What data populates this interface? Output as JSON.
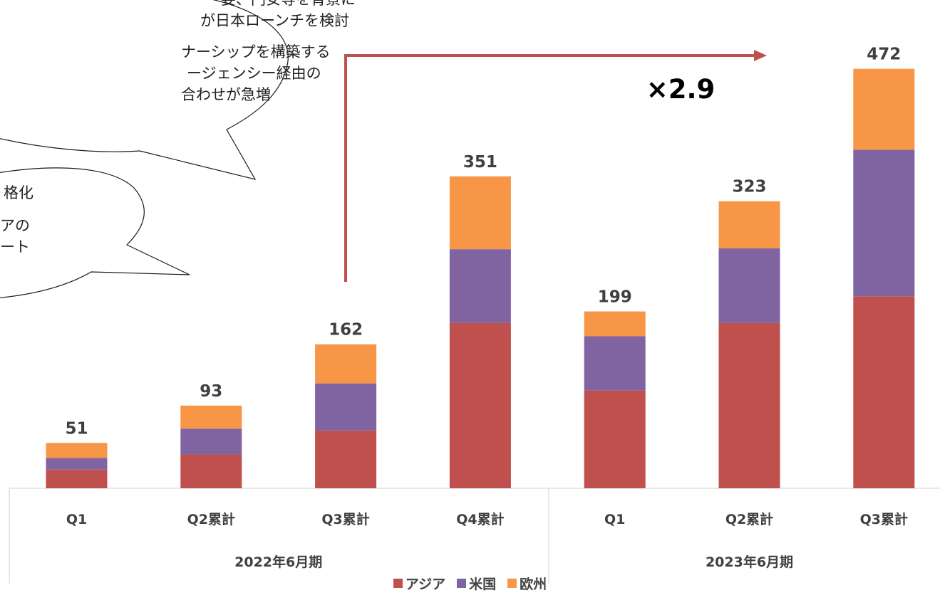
{
  "chart_data": {
    "type": "bar",
    "stacked": true,
    "categories": [
      "Q1",
      "Q2累計",
      "Q3累計",
      "Q4累計",
      "Q1",
      "Q2累計",
      "Q3累計"
    ],
    "groups": [
      {
        "label": "2022年6月期",
        "categories": [
          "Q1",
          "Q2累計",
          "Q3累計",
          "Q4累計"
        ]
      },
      {
        "label": "2023年6月期",
        "categories": [
          "Q1",
          "Q2累計",
          "Q3累計"
        ]
      }
    ],
    "series": [
      {
        "name": "アジア",
        "color": "#c0504d",
        "values": [
          21,
          38,
          65,
          186,
          110,
          186,
          216
        ]
      },
      {
        "name": "米国",
        "color": "#8064a2",
        "values": [
          13,
          29,
          53,
          83,
          61,
          84,
          165
        ]
      },
      {
        "name": "欧州",
        "color": "#f79646",
        "values": [
          17,
          26,
          44,
          82,
          28,
          53,
          91
        ]
      }
    ],
    "totals": [
      "51",
      "93",
      "162",
      "351",
      "199",
      "323",
      "472"
    ],
    "ylim": [
      0,
      500
    ],
    "legend_position": "bottom",
    "annotation": {
      "text": "×2.9",
      "arrow_color": "#c0504d"
    }
  },
  "callouts": [
    {
      "lines": [
        "要、円安等を背景に",
        "が日本ローンチを検討",
        "ナーシップを構築する",
        "ージェンシー経由の",
        "合わせが急増"
      ]
    },
    {
      "lines": [
        "格化",
        "アの",
        "ート"
      ]
    }
  ]
}
